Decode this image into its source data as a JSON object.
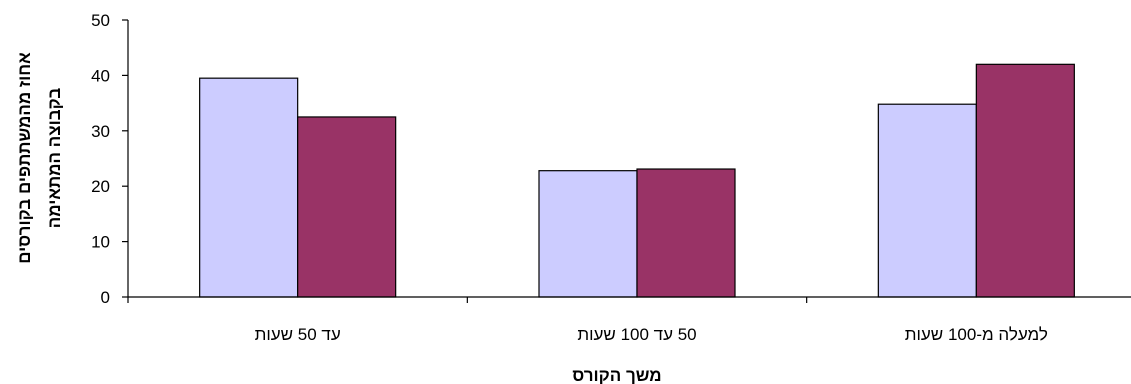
{
  "chart_data": {
    "type": "bar",
    "categories": [
      "עד 50 שעות",
      "50 עד 100 שעות",
      "למעלה מ-100 שעות"
    ],
    "series": [
      {
        "values": [
          39.5,
          22.8,
          34.8
        ],
        "color": "#CCCCFF"
      },
      {
        "values": [
          32.5,
          23.1,
          42.0
        ],
        "color": "#993366"
      }
    ],
    "xlabel": "משך הקורס",
    "ylabel_lines": [
      "אחוז מהמשתתפים בקורסים",
      "בקבוצה המתאימה"
    ],
    "ylim": [
      0,
      50
    ],
    "yticks": [
      0,
      10,
      20,
      30,
      40,
      50
    ],
    "grid": false,
    "legend": "none"
  }
}
